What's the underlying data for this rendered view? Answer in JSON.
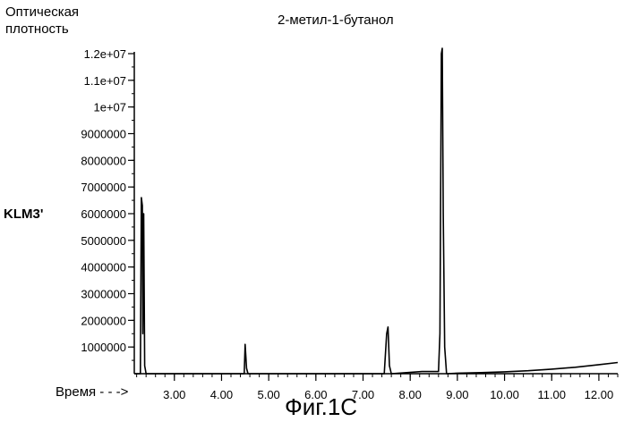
{
  "chart_data": {
    "type": "line",
    "title": "2-метил-1-бутанол",
    "ylabel_top": [
      "Оптическая",
      "плотность"
    ],
    "series_label": "KLM3'",
    "xlabel": "Время - - ->",
    "caption": "Фиг.1С",
    "xlim": [
      2.15,
      12.4
    ],
    "ylim": [
      0,
      12000000
    ],
    "x_ticks": [
      3.0,
      4.0,
      5.0,
      6.0,
      7.0,
      8.0,
      9.0,
      10.0,
      11.0,
      12.0
    ],
    "x_tick_labels": [
      "3.00",
      "4.00",
      "5.00",
      "6.00",
      "7.00",
      "8.00",
      "9.00",
      "10.00",
      "11.00",
      "12.00"
    ],
    "y_ticks": [
      1000000,
      2000000,
      3000000,
      4000000,
      5000000,
      6000000,
      7000000,
      8000000,
      9000000,
      10000000,
      11000000,
      12000000
    ],
    "y_tick_labels": [
      "1000000",
      "2000000",
      "3000000",
      "4000000",
      "5000000",
      "6000000",
      "7000000",
      "8000000",
      "9000000",
      "1e+07",
      "1.1e+07",
      "1.2e+07"
    ],
    "grid": false,
    "series": [
      {
        "x": [
          2.15,
          2.28,
          2.3,
          2.32,
          2.33,
          2.35,
          2.37,
          2.4,
          4.45,
          4.48,
          4.5,
          4.53,
          4.56,
          7.45,
          7.5,
          7.53,
          7.56,
          7.6,
          8.25,
          8.6,
          8.63,
          8.66,
          8.68,
          8.7,
          8.73,
          8.77,
          9.0,
          9.5,
          10.0,
          10.5,
          11.0,
          11.5,
          12.0,
          12.4
        ],
        "y": [
          0,
          0,
          6600000,
          6300000,
          1500000,
          6000000,
          300000,
          0,
          0,
          0,
          1100000,
          200000,
          0,
          0,
          1500000,
          1750000,
          300000,
          0,
          80000,
          80000,
          1500000,
          12000000,
          12200000,
          6000000,
          1000000,
          0,
          20000,
          40000,
          70000,
          110000,
          170000,
          240000,
          340000,
          420000
        ]
      }
    ]
  }
}
